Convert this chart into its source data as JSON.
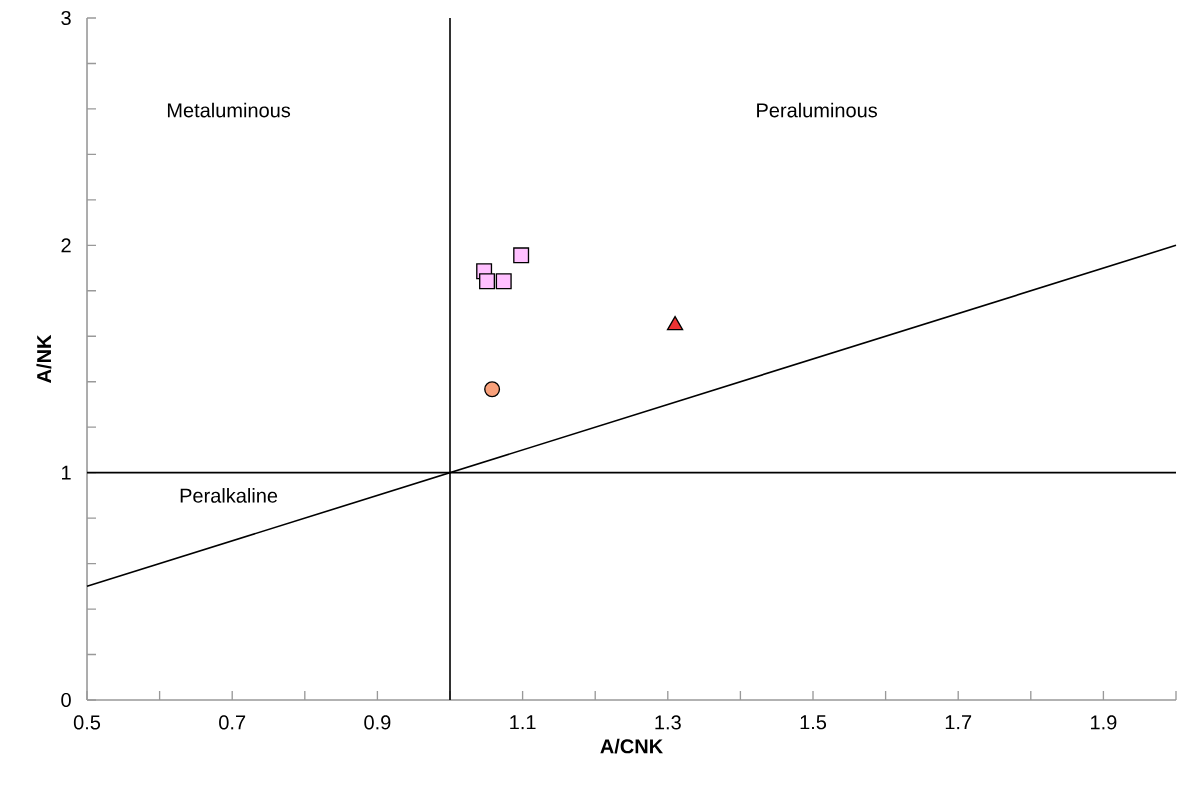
{
  "chart_data": {
    "type": "scatter",
    "xlabel": "A/CNK",
    "ylabel": "A/NK",
    "xlim": [
      0.5,
      2.0
    ],
    "ylim": [
      0,
      3
    ],
    "xticks": [
      0.5,
      {
        "value": 0.6,
        "label": null
      },
      0.7,
      {
        "value": 0.8,
        "label": null
      },
      0.9,
      {
        "value": 1.0,
        "label": null
      },
      1.1,
      {
        "value": 1.2,
        "label": null
      },
      1.3,
      {
        "value": 1.4,
        "label": null
      },
      1.5,
      {
        "value": 1.6,
        "label": null
      },
      1.7,
      {
        "value": 1.8,
        "label": null
      },
      1.9,
      {
        "value": 2.0,
        "label": null
      }
    ],
    "yticks": [
      0,
      {
        "value": 0.2,
        "label": null
      },
      {
        "value": 0.4,
        "label": null
      },
      {
        "value": 0.6,
        "label": null
      },
      {
        "value": 0.8,
        "label": null
      },
      1,
      {
        "value": 1.2,
        "label": null
      },
      {
        "value": 1.4,
        "label": null
      },
      {
        "value": 1.6,
        "label": null
      },
      {
        "value": 1.8,
        "label": null
      },
      2,
      {
        "value": 2.2,
        "label": null
      },
      {
        "value": 2.4,
        "label": null
      },
      {
        "value": 2.6,
        "label": null
      },
      {
        "value": 2.8,
        "label": null
      },
      3
    ],
    "grid": false,
    "series": [
      {
        "marker": "square",
        "color": "#ffc0ff",
        "x": [
          1.047,
          1.051,
          1.074,
          1.098
        ],
        "values": [
          1.886,
          1.842,
          1.842,
          1.956
        ]
      },
      {
        "marker": "circle",
        "color": "#f8a07a",
        "x": [
          1.058
        ],
        "values": [
          1.367
        ]
      },
      {
        "marker": "triangle",
        "color": "#ee3333",
        "x": [
          1.31
        ],
        "values": [
          1.648
        ]
      },
      {
        "type": "line",
        "marker": "none",
        "color": "#000000",
        "x": [
          0.5,
          2.0
        ],
        "values": [
          0.5,
          2.0
        ]
      },
      {
        "type": "line",
        "marker": "none",
        "color": "#000000",
        "x": [
          1.0,
          1.0
        ],
        "values": [
          0,
          3
        ]
      },
      {
        "type": "line",
        "marker": "none",
        "color": "#000000",
        "x": [
          0.5,
          2.0
        ],
        "values": [
          1,
          1
        ]
      }
    ],
    "annotations": [
      "Metaluminous",
      "Peraluminous",
      "Peralkaline"
    ]
  }
}
